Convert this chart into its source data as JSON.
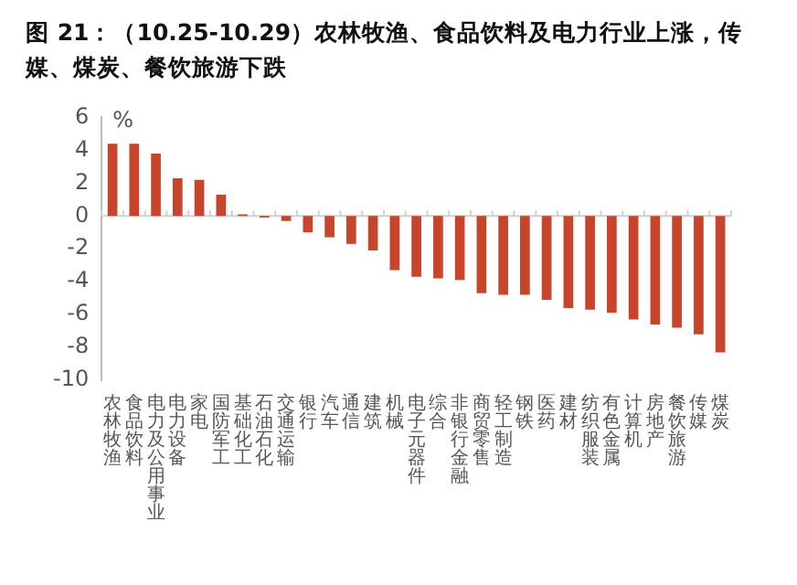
{
  "chart_data": {
    "type": "bar",
    "title": "图 21：（10.25-10.29）农林牧渔、食品饮料及电力行业上涨，传媒、煤炭、餐饮旅游下跌",
    "ylabel": "%",
    "categories": [
      "农林牧渔",
      "食品饮料",
      "电力及公用事业",
      "电力设备",
      "家电",
      "国防军工",
      "基础化工",
      "石油石化",
      "交通运输",
      "银行",
      "汽车",
      "通信",
      "建筑",
      "机械",
      "电子元器件",
      "综合",
      "非银行金融",
      "商贸零售",
      "轻工制造",
      "钢铁",
      "医药",
      "建材",
      "纺织服装",
      "有色金属",
      "计算机",
      "房地产",
      "餐饮旅游",
      "传媒",
      "煤炭"
    ],
    "values": [
      4.4,
      4.4,
      3.8,
      2.3,
      2.2,
      1.3,
      0.1,
      -0.1,
      -0.3,
      -1.0,
      -1.3,
      -1.7,
      -2.1,
      -3.3,
      -3.7,
      -3.8,
      -3.9,
      -4.7,
      -4.8,
      -4.8,
      -5.1,
      -5.6,
      -5.7,
      -5.9,
      -6.3,
      -6.6,
      -6.8,
      -7.2,
      -8.3
    ],
    "color": "#c8442a",
    "ylim": [
      -10,
      6
    ],
    "yticks": [
      -10,
      -8,
      -6,
      -4,
      -2,
      0,
      2,
      4,
      6
    ],
    "legend": false
  }
}
